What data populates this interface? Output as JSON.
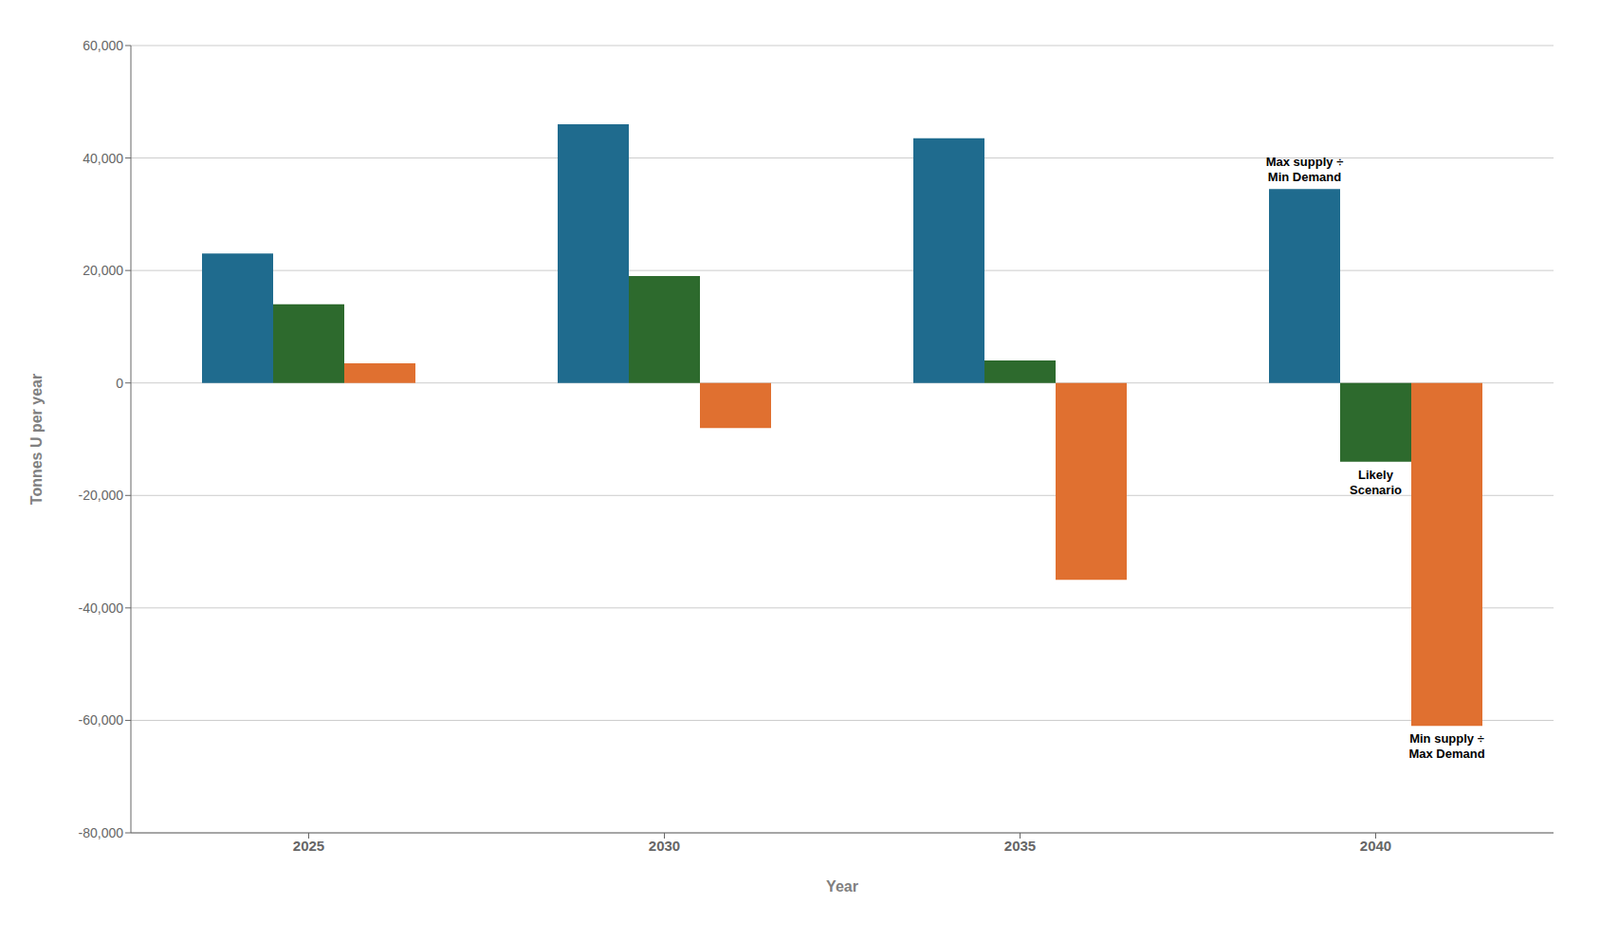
{
  "chart_data": {
    "type": "bar",
    "xlabel": "Year",
    "ylabel": "Tonnes U per year",
    "categories": [
      "2025",
      "2030",
      "2035",
      "2040"
    ],
    "series": [
      {
        "name": "Max supply ÷ Min Demand",
        "color": "#1f6b8e",
        "values": [
          23000,
          46000,
          43500,
          34500
        ]
      },
      {
        "name": "Likely Scenario",
        "color": "#2d6a2d",
        "values": [
          14000,
          19000,
          4000,
          -14000
        ]
      },
      {
        "name": "Min supply ÷ Max Demand",
        "color": "#e07030",
        "values": [
          3500,
          -8000,
          -35000,
          -61000
        ]
      }
    ],
    "ylim": [
      -80000,
      60000
    ],
    "yticks": [
      {
        "value": -80000,
        "label": "-80,000"
      },
      {
        "value": -60000,
        "label": "-60,000"
      },
      {
        "value": -40000,
        "label": "-40,000"
      },
      {
        "value": -20000,
        "label": "-20,000"
      },
      0,
      {
        "value": 20000,
        "label": "20,000"
      },
      {
        "value": 40000,
        "label": "40,000"
      },
      {
        "value": 60000,
        "label": "60,000"
      }
    ],
    "grid": true,
    "annotations": [
      "Max supply ÷\nMin Demand",
      "Likely\nScenario",
      "Min supply ÷\nMax Demand"
    ]
  }
}
